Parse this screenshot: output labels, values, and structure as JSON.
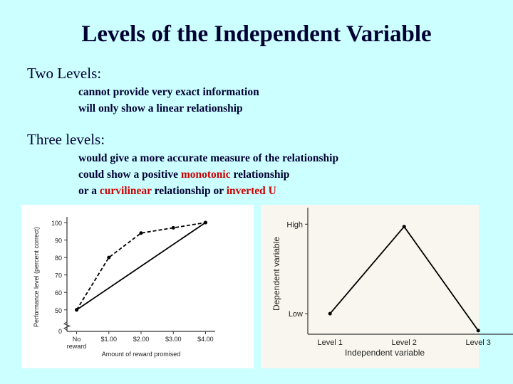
{
  "slide": {
    "title": "Levels of the Independent Variable",
    "sections": [
      {
        "heading": "Two Levels:",
        "lines": [
          [
            "cannot provide very exact information"
          ],
          [
            "will only show a linear relationship"
          ]
        ]
      },
      {
        "heading": "Three levels:",
        "lines": [
          [
            "would give a more accurate measure of the relationship"
          ],
          [
            "could show a positive ",
            "monotonic",
            " relationship"
          ],
          [
            "or a ",
            "curvilinear",
            " relationship or  ",
            "inverted U"
          ]
        ]
      }
    ]
  },
  "chart_data": [
    {
      "type": "line",
      "xlabel": "Amount of reward promised",
      "ylabel": "Performance level (percent correct)",
      "xlim": [
        -0.3,
        4.3
      ],
      "xticks": [
        {
          "value": 0,
          "label": "No reward"
        },
        {
          "value": 1,
          "label": "$1.00"
        },
        {
          "value": 2,
          "label": "$2.00"
        },
        {
          "value": 3,
          "label": "$3.00"
        },
        {
          "value": 4,
          "label": "$4.00"
        }
      ],
      "ylim": [
        44,
        100
      ],
      "yticks": [
        50,
        60,
        70,
        80,
        90,
        100
      ],
      "break_label": "0",
      "series": [
        {
          "color": "#000000",
          "dash": true,
          "x": [
            0,
            1,
            2,
            3,
            4
          ],
          "values": [
            50,
            80,
            94,
            97,
            100
          ]
        },
        {
          "color": "#000000",
          "dash": false,
          "x": [
            0,
            4
          ],
          "values": [
            50,
            100
          ]
        }
      ]
    },
    {
      "type": "line",
      "xlabel": "Independent variable",
      "ylabel": "Dependent variable",
      "categories": [
        "Level 1",
        "Level 2",
        "Level 3"
      ],
      "ylim": [
        0,
        1
      ],
      "yticks": [
        {
          "value": 0.17,
          "label": "Low"
        },
        {
          "value": 0.91,
          "label": "High"
        }
      ],
      "series": [
        {
          "color": "#000000",
          "dash": false,
          "values": [
            0.17,
            0.89,
            0.03
          ]
        }
      ]
    }
  ]
}
